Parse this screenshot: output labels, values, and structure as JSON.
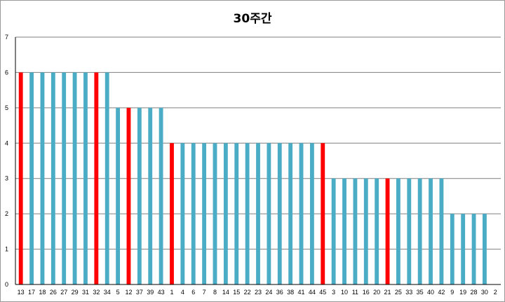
{
  "chart_data": {
    "type": "bar",
    "title": "30주간",
    "xlabel": "",
    "ylabel": "",
    "ylim": [
      0,
      7
    ],
    "yticks": [
      0,
      1,
      2,
      3,
      4,
      5,
      6,
      7
    ],
    "grid": true,
    "legend": "none",
    "colors": {
      "default": "#4bacc6",
      "highlight": "#ff0000",
      "grid": "#7f7f7f",
      "axis": "#000000"
    },
    "categories": [
      "13",
      "17",
      "18",
      "26",
      "27",
      "29",
      "31",
      "32",
      "34",
      "5",
      "12",
      "37",
      "39",
      "43",
      "1",
      "4",
      "6",
      "7",
      "8",
      "14",
      "15",
      "22",
      "23",
      "24",
      "36",
      "38",
      "41",
      "44",
      "45",
      "3",
      "10",
      "11",
      "16",
      "20",
      "21",
      "25",
      "33",
      "35",
      "40",
      "42",
      "9",
      "19",
      "28",
      "30",
      "2"
    ],
    "values": [
      6,
      6,
      6,
      6,
      6,
      6,
      6,
      6,
      6,
      5,
      5,
      5,
      5,
      5,
      4,
      4,
      4,
      4,
      4,
      4,
      4,
      4,
      4,
      4,
      4,
      4,
      4,
      4,
      4,
      3,
      3,
      3,
      3,
      3,
      3,
      3,
      3,
      3,
      3,
      3,
      2,
      2,
      2,
      2,
      0
    ],
    "highlighted": [
      "13",
      "32",
      "12",
      "1",
      "45",
      "21"
    ]
  }
}
